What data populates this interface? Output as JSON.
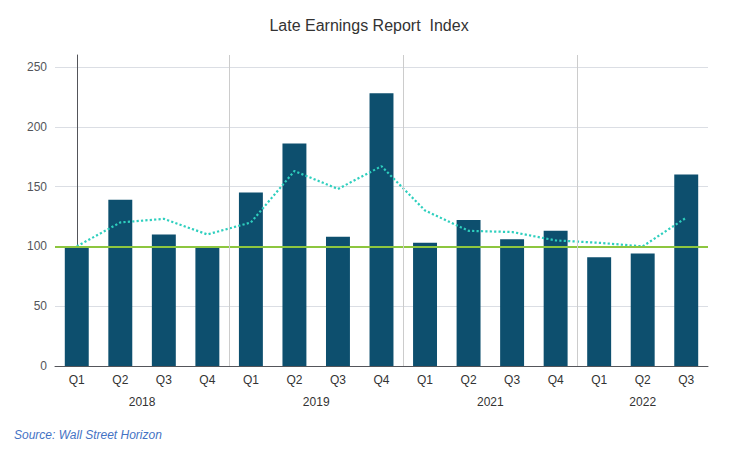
{
  "chart_data": {
    "type": "bar",
    "title": "Late Earnings Report  Index",
    "categories": [
      "Q1",
      "Q2",
      "Q3",
      "Q4",
      "Q1",
      "Q2",
      "Q3",
      "Q4",
      "Q1",
      "Q2",
      "Q3",
      "Q4",
      "Q1",
      "Q2",
      "Q3"
    ],
    "series": [
      {
        "type": "bar",
        "color": "#0d4f6e",
        "values": [
          100,
          139,
          110,
          100,
          145,
          186,
          108,
          228,
          103,
          122,
          106,
          113,
          91,
          94,
          160
        ]
      },
      {
        "type": "line",
        "color": "#2ecfbe",
        "line_style": "dotted",
        "values": [
          100,
          120,
          123,
          110,
          120,
          163,
          148,
          167,
          130,
          113,
          112,
          105,
          103,
          100,
          124
        ]
      }
    ],
    "reference_line": {
      "value": 100,
      "color": "#8dc63f"
    },
    "year_groups": [
      {
        "label": "2018",
        "size": 4
      },
      {
        "label": "2019",
        "size": 4
      },
      {
        "label": "2021",
        "size": 4
      },
      {
        "label": "2022",
        "size": 3
      }
    ],
    "source": "Source: Wall Street Horizon",
    "source_color": "#4472c4",
    "ylim": [
      0,
      260
    ],
    "yticks": [
      0,
      50,
      100,
      150,
      200,
      250
    ],
    "grid": true
  }
}
